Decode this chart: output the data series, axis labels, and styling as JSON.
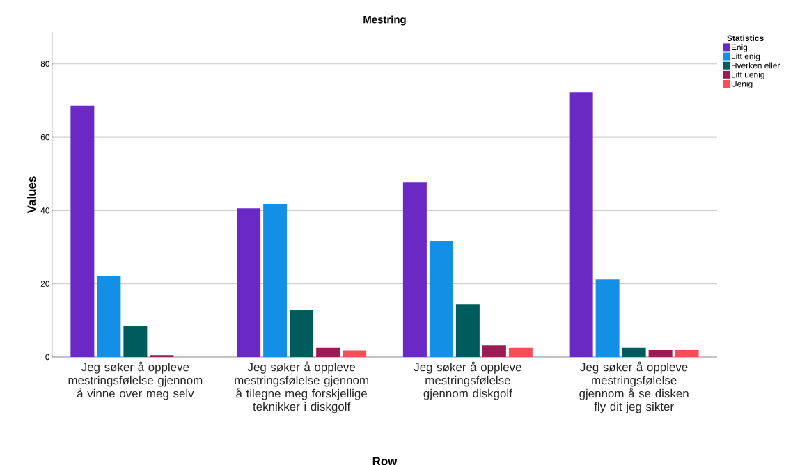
{
  "chart_data": {
    "type": "bar",
    "title": "Mestring",
    "xlabel": "Row",
    "ylabel": "Values",
    "legend_title": "Statistics",
    "categories": [
      "Jeg søker å oppleve mestringsfølelse gjennom å vinne over meg selv",
      "Jeg søker å oppleve mestringsfølelse gjennom å tilegne meg forskjellige teknikker i diskgolf",
      "Jeg søker å oppleve mestringsfølelse gjennom diskgolf",
      "Jeg søker å oppleve mestringsfølelse gjennom å se disken fly dit jeg sikter"
    ],
    "series": [
      {
        "name": "Enig",
        "color": "#6a29c4",
        "values": [
          68.6,
          40.6,
          47.6,
          72.3
        ]
      },
      {
        "name": "Litt enig",
        "color": "#1390e6",
        "values": [
          22.1,
          41.8,
          31.7,
          21.2
        ]
      },
      {
        "name": "Hverken eller",
        "color": "#005c5c",
        "values": [
          8.4,
          12.8,
          14.4,
          2.5
        ]
      },
      {
        "name": "Litt uenig",
        "color": "#9b1b54",
        "values": [
          0.5,
          2.5,
          3.2,
          1.9
        ]
      },
      {
        "name": "Uenig",
        "color": "#fa4d56",
        "values": [
          null,
          1.8,
          2.5,
          1.9
        ]
      }
    ],
    "ylim": [
      0,
      88.7
    ],
    "yticks": [
      0,
      20,
      40,
      60,
      80
    ],
    "grid": "y",
    "legend": "top right"
  }
}
